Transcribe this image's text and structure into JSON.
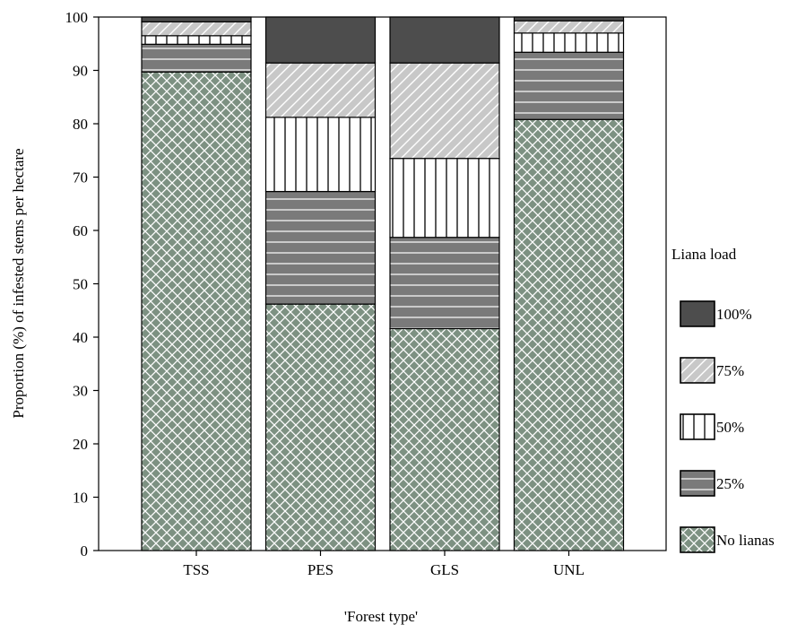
{
  "chart_data": {
    "type": "bar",
    "stacked": true,
    "title": "",
    "xlabel": "'Forest type'",
    "ylabel": "Proportion (%) of infested stems per hectare",
    "ylim": [
      0,
      100
    ],
    "yticks": [
      "0",
      "10",
      "20",
      "30",
      "40",
      "50",
      "60",
      "70",
      "80",
      "90",
      "100"
    ],
    "categories": [
      "TSS",
      "PES",
      "GLS",
      "UNL"
    ],
    "legend_title": "Liana load",
    "legend_position": "right",
    "series": [
      {
        "name": "No lianas",
        "pattern": "crosshatch",
        "color": "#7d9182",
        "values": [
          89.7,
          46.2,
          41.6,
          80.8
        ]
      },
      {
        "name": "25%",
        "pattern": "hstripe",
        "color": "#7a7a7a",
        "values": [
          5.2,
          21.1,
          17.1,
          12.6
        ]
      },
      {
        "name": "50%",
        "pattern": "vstripe",
        "color": "#ffffff",
        "values": [
          1.6,
          13.9,
          14.8,
          3.6
        ]
      },
      {
        "name": "75%",
        "pattern": "diagonal",
        "color": "#c8c8c8",
        "values": [
          2.6,
          10.2,
          17.9,
          2.3
        ]
      },
      {
        "name": "100%",
        "pattern": "solid",
        "color": "#4d4d4d",
        "values": [
          0.9,
          8.6,
          8.6,
          0.7
        ]
      }
    ]
  }
}
